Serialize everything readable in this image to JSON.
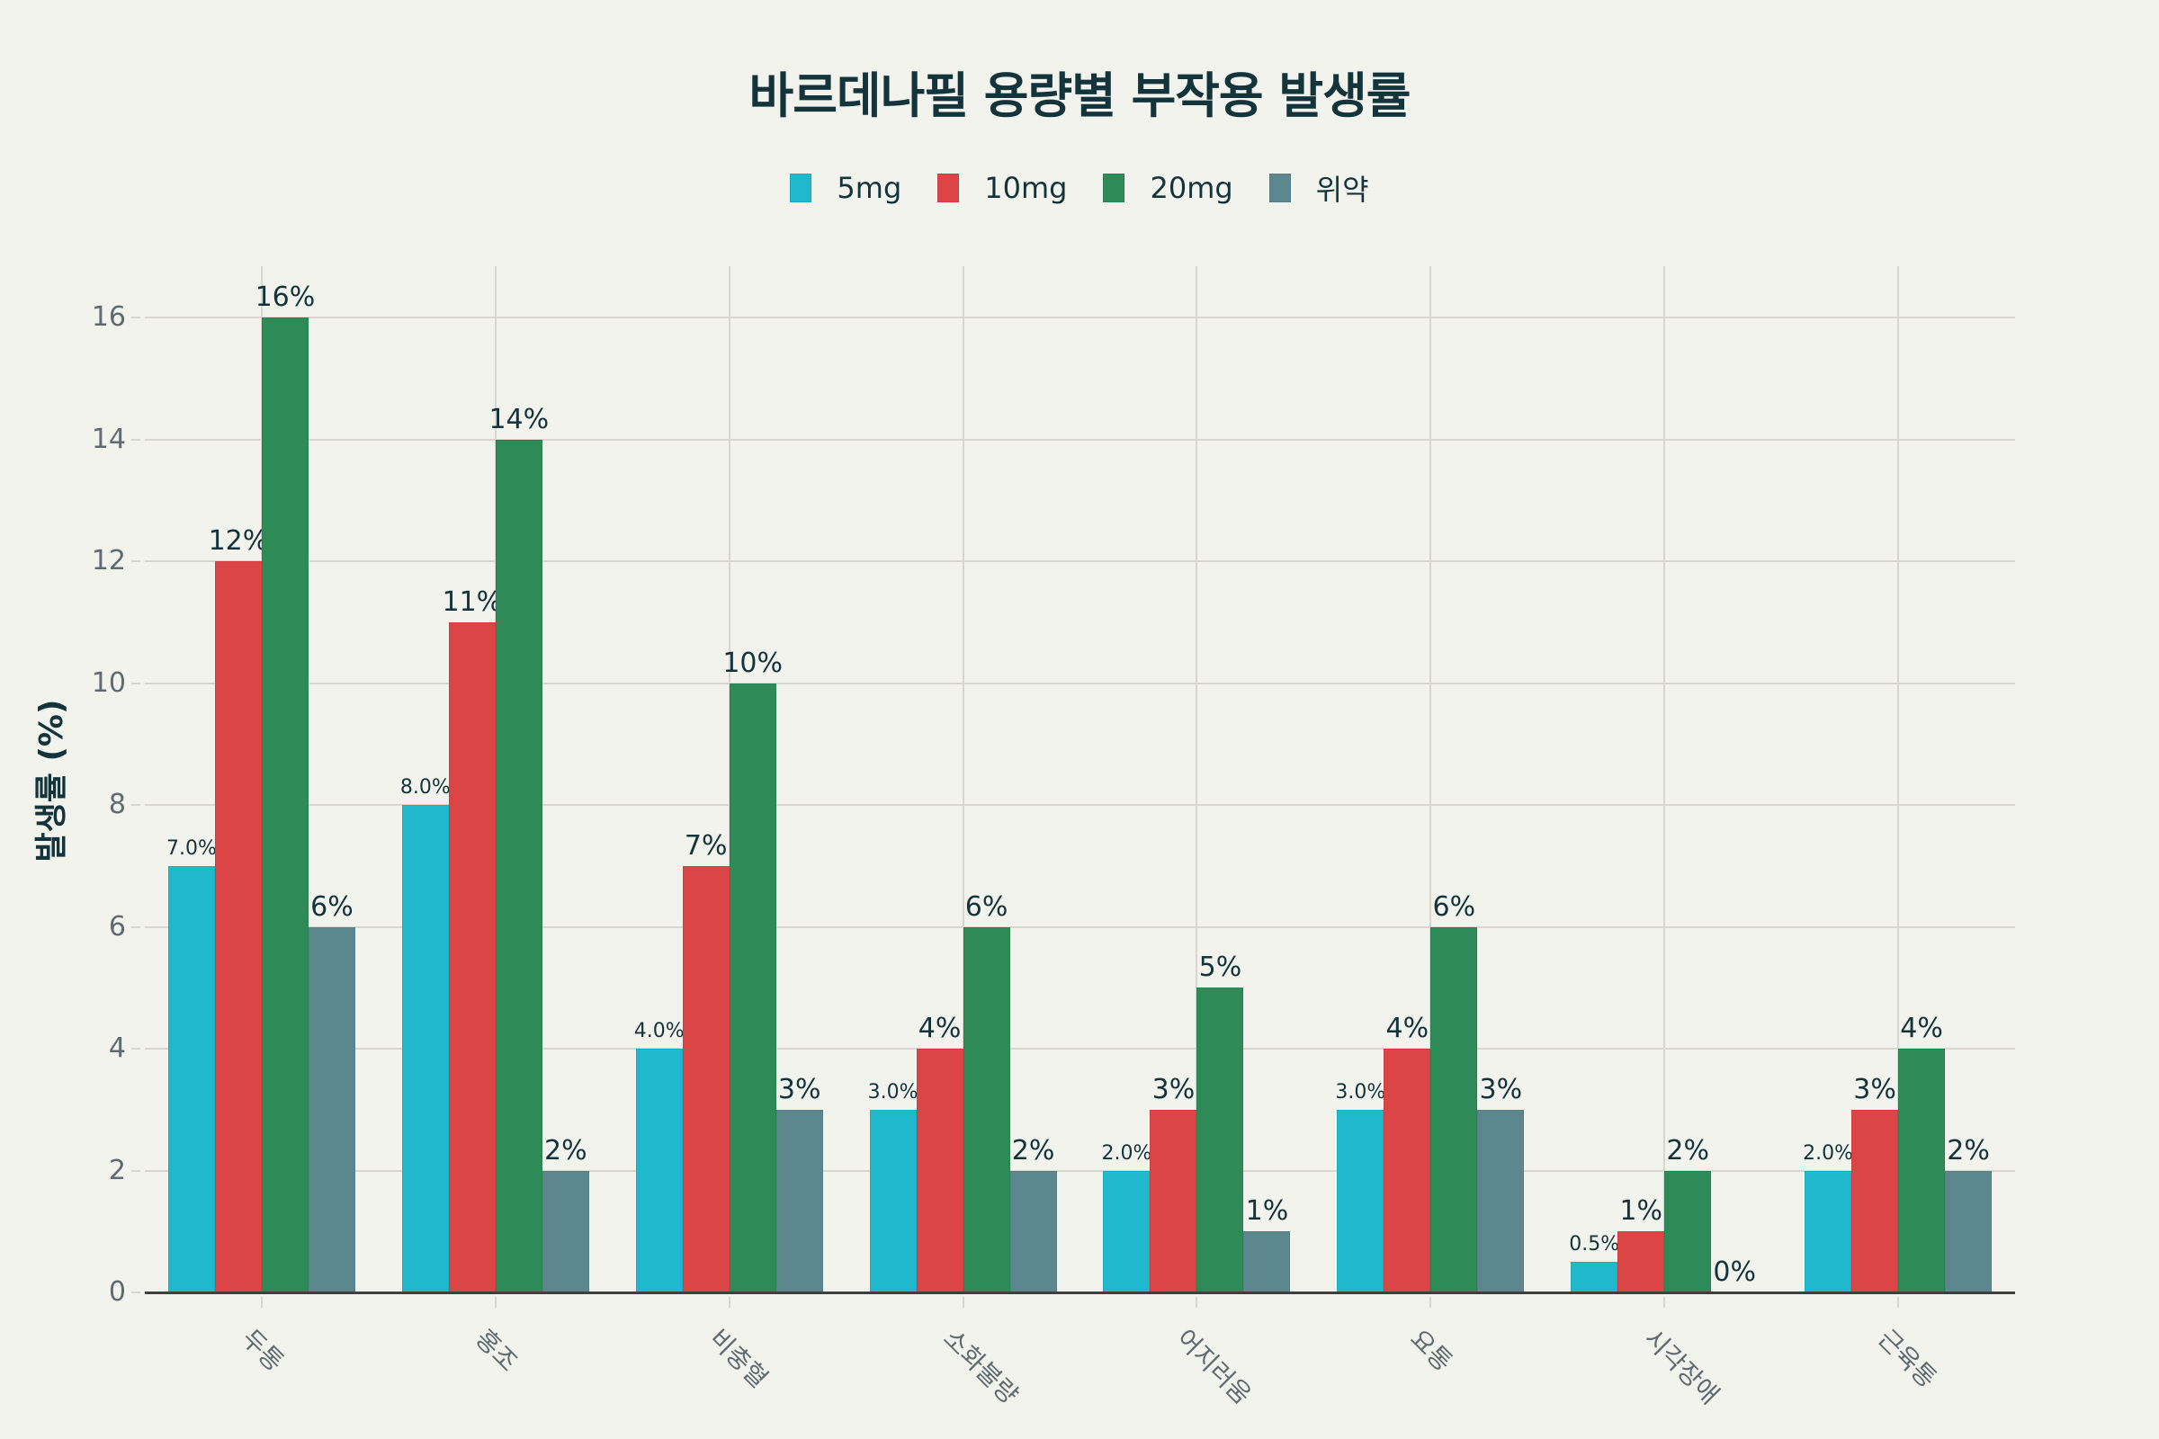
{
  "title": "바르데나필 용량별 부작용 발생률",
  "legend": [
    {
      "label": "5mg",
      "color": "#1FB8CD"
    },
    {
      "label": "10mg",
      "color": "#DB4545"
    },
    {
      "label": "20mg",
      "color": "#2E8B57"
    },
    {
      "label": "위약",
      "color": "#5D878F"
    }
  ],
  "yaxis": {
    "title": "발생률 (%)",
    "ticks": [
      "0",
      "2",
      "4",
      "6",
      "8",
      "10",
      "12",
      "14",
      "16"
    ]
  },
  "bar_labels": [
    [
      "7.0%",
      "12%",
      "16%",
      "6%"
    ],
    [
      "8.0%",
      "11%",
      "14%",
      "2%"
    ],
    [
      "4.0%",
      "7%",
      "10%",
      "3%"
    ],
    [
      "3.0%",
      "4%",
      "6%",
      "2%"
    ],
    [
      "2.0%",
      "3%",
      "5%",
      "1%"
    ],
    [
      "3.0%",
      "4%",
      "6%",
      "3%"
    ],
    [
      "0.5%",
      "1%",
      "2%",
      "0%"
    ],
    [
      "2.0%",
      "3%",
      "4%",
      "2%"
    ]
  ],
  "chart_data": {
    "type": "bar",
    "title": "바르데나필 용량별 부작용 발생률",
    "xlabel": "",
    "ylabel": "발생률 (%)",
    "ylim": [
      0,
      16.5
    ],
    "grid": true,
    "legend_position": "top-center",
    "categories": [
      "두통",
      "홍조",
      "비충혈",
      "소화불량",
      "어지러움",
      "요통",
      "시각장애",
      "근육통"
    ],
    "series": [
      {
        "name": "5mg",
        "color": "#1FB8CD",
        "values": [
          7.0,
          8.0,
          4.0,
          3.0,
          2.0,
          3.0,
          0.5,
          2.0
        ]
      },
      {
        "name": "10mg",
        "color": "#DB4545",
        "values": [
          12,
          11,
          7,
          4,
          3,
          4,
          1,
          3
        ]
      },
      {
        "name": "20mg",
        "color": "#2E8B57",
        "values": [
          16,
          14,
          10,
          6,
          5,
          6,
          2,
          4
        ]
      },
      {
        "name": "위약",
        "color": "#5D878F",
        "values": [
          6,
          2,
          3,
          2,
          1,
          3,
          0,
          2
        ]
      }
    ]
  }
}
